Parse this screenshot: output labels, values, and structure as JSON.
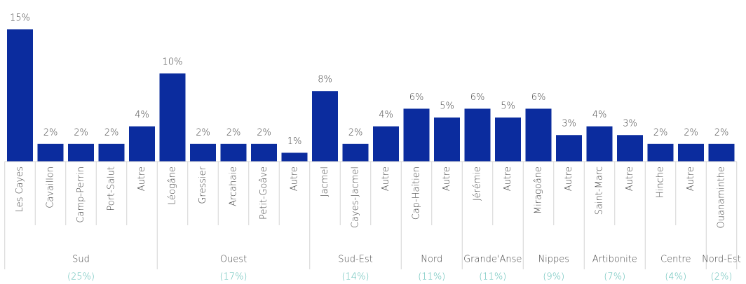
{
  "chart_data": {
    "type": "bar",
    "color": "#0b2c9e",
    "ylim": [
      0,
      15
    ],
    "groups": [
      {
        "name": "Sud",
        "share_label": "(25%)",
        "categories": [
          "Les Cayes",
          "Cavaillon",
          "Camp-Perrin",
          "Port-Salut",
          "Autre"
        ],
        "values": [
          15,
          2,
          2,
          2,
          4
        ],
        "value_labels": [
          "15%",
          "2%",
          "2%",
          "2%",
          "4%"
        ]
      },
      {
        "name": "Ouest",
        "share_label": "(17%)",
        "categories": [
          "Léogâne",
          "Gressier",
          "Arcahaie",
          "Petit-Goâve",
          "Autre"
        ],
        "values": [
          10,
          2,
          2,
          2,
          1
        ],
        "value_labels": [
          "10%",
          "2%",
          "2%",
          "2%",
          "1%"
        ]
      },
      {
        "name": "Sud-Est",
        "share_label": "(14%)",
        "categories": [
          "Jacmel",
          "Cayes-Jacmel",
          "Autre"
        ],
        "values": [
          8,
          2,
          4
        ],
        "value_labels": [
          "8%",
          "2%",
          "4%"
        ]
      },
      {
        "name": "Nord",
        "share_label": "(11%)",
        "categories": [
          "Cap-Haïtien",
          "Autre"
        ],
        "values": [
          6,
          5
        ],
        "value_labels": [
          "6%",
          "5%"
        ]
      },
      {
        "name": "Grande'Anse",
        "share_label": "(11%)",
        "categories": [
          "Jérémie",
          "Autre"
        ],
        "values": [
          6,
          5
        ],
        "value_labels": [
          "6%",
          "5%"
        ]
      },
      {
        "name": "Nippes",
        "share_label": "(9%)",
        "categories": [
          "Miragoâne",
          "Autre"
        ],
        "values": [
          6,
          3
        ],
        "value_labels": [
          "6%",
          "3%"
        ]
      },
      {
        "name": "Artibonite",
        "share_label": "(7%)",
        "categories": [
          "Saint-Marc",
          "Autre"
        ],
        "values": [
          4,
          3
        ],
        "value_labels": [
          "4%",
          "3%"
        ]
      },
      {
        "name": "Centre",
        "share_label": "(4%)",
        "categories": [
          "Hinche",
          "Autre"
        ],
        "values": [
          2,
          2
        ],
        "value_labels": [
          "2%",
          "2%"
        ]
      },
      {
        "name": "Nord-Est",
        "share_label": "(2%)",
        "categories": [
          "Ouanaminthe"
        ],
        "values": [
          2
        ],
        "value_labels": [
          "2%"
        ]
      }
    ]
  }
}
